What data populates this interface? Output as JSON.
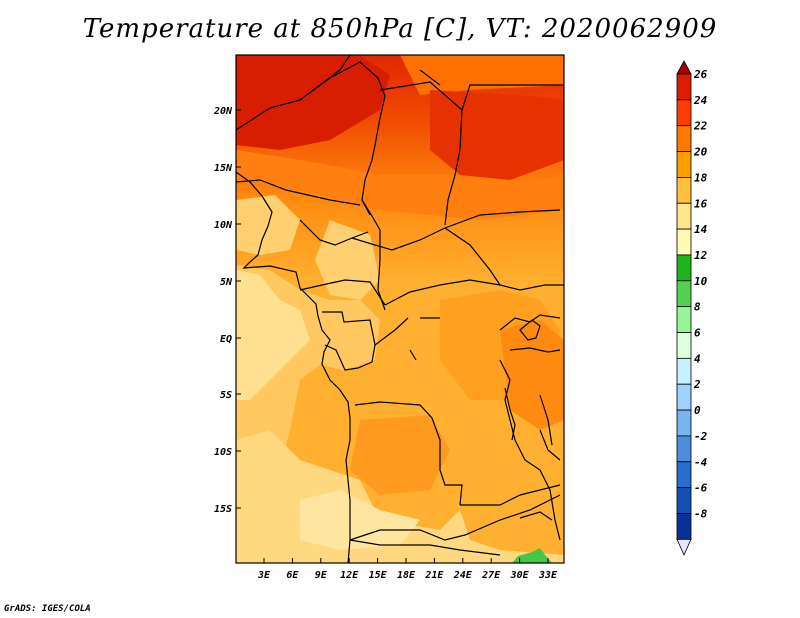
{
  "title": "Temperature at 850hPa [C], VT: 2020062909",
  "credit": "GrADS: IGES/COLA",
  "map": {
    "lat_labels": [
      "20N",
      "15N",
      "10N",
      "5N",
      "EQ",
      "5S",
      "10S",
      "15S"
    ],
    "lon_labels": [
      "3E",
      "6E",
      "9E",
      "12E",
      "15E",
      "18E",
      "21E",
      "24E",
      "27E",
      "30E",
      "33E"
    ]
  },
  "colorbar": {
    "labels": [
      "26",
      "24",
      "22",
      "20",
      "18",
      "16",
      "14",
      "12",
      "10",
      "8",
      "6",
      "4",
      "2",
      "0",
      "-2",
      "-4",
      "-6",
      "-8"
    ],
    "colors": [
      "#a50000",
      "#dc1e00",
      "#ff3c00",
      "#ff7800",
      "#ffa000",
      "#ffc03c",
      "#ffe68c",
      "#fffab4",
      "#1eb41e",
      "#50d250",
      "#96f596",
      "#dcffdc",
      "#c8f0ff",
      "#a0d2ff",
      "#78b4f0",
      "#508cdc",
      "#286ecd",
      "#1450b4",
      "#0a3296",
      "#000064"
    ]
  }
}
